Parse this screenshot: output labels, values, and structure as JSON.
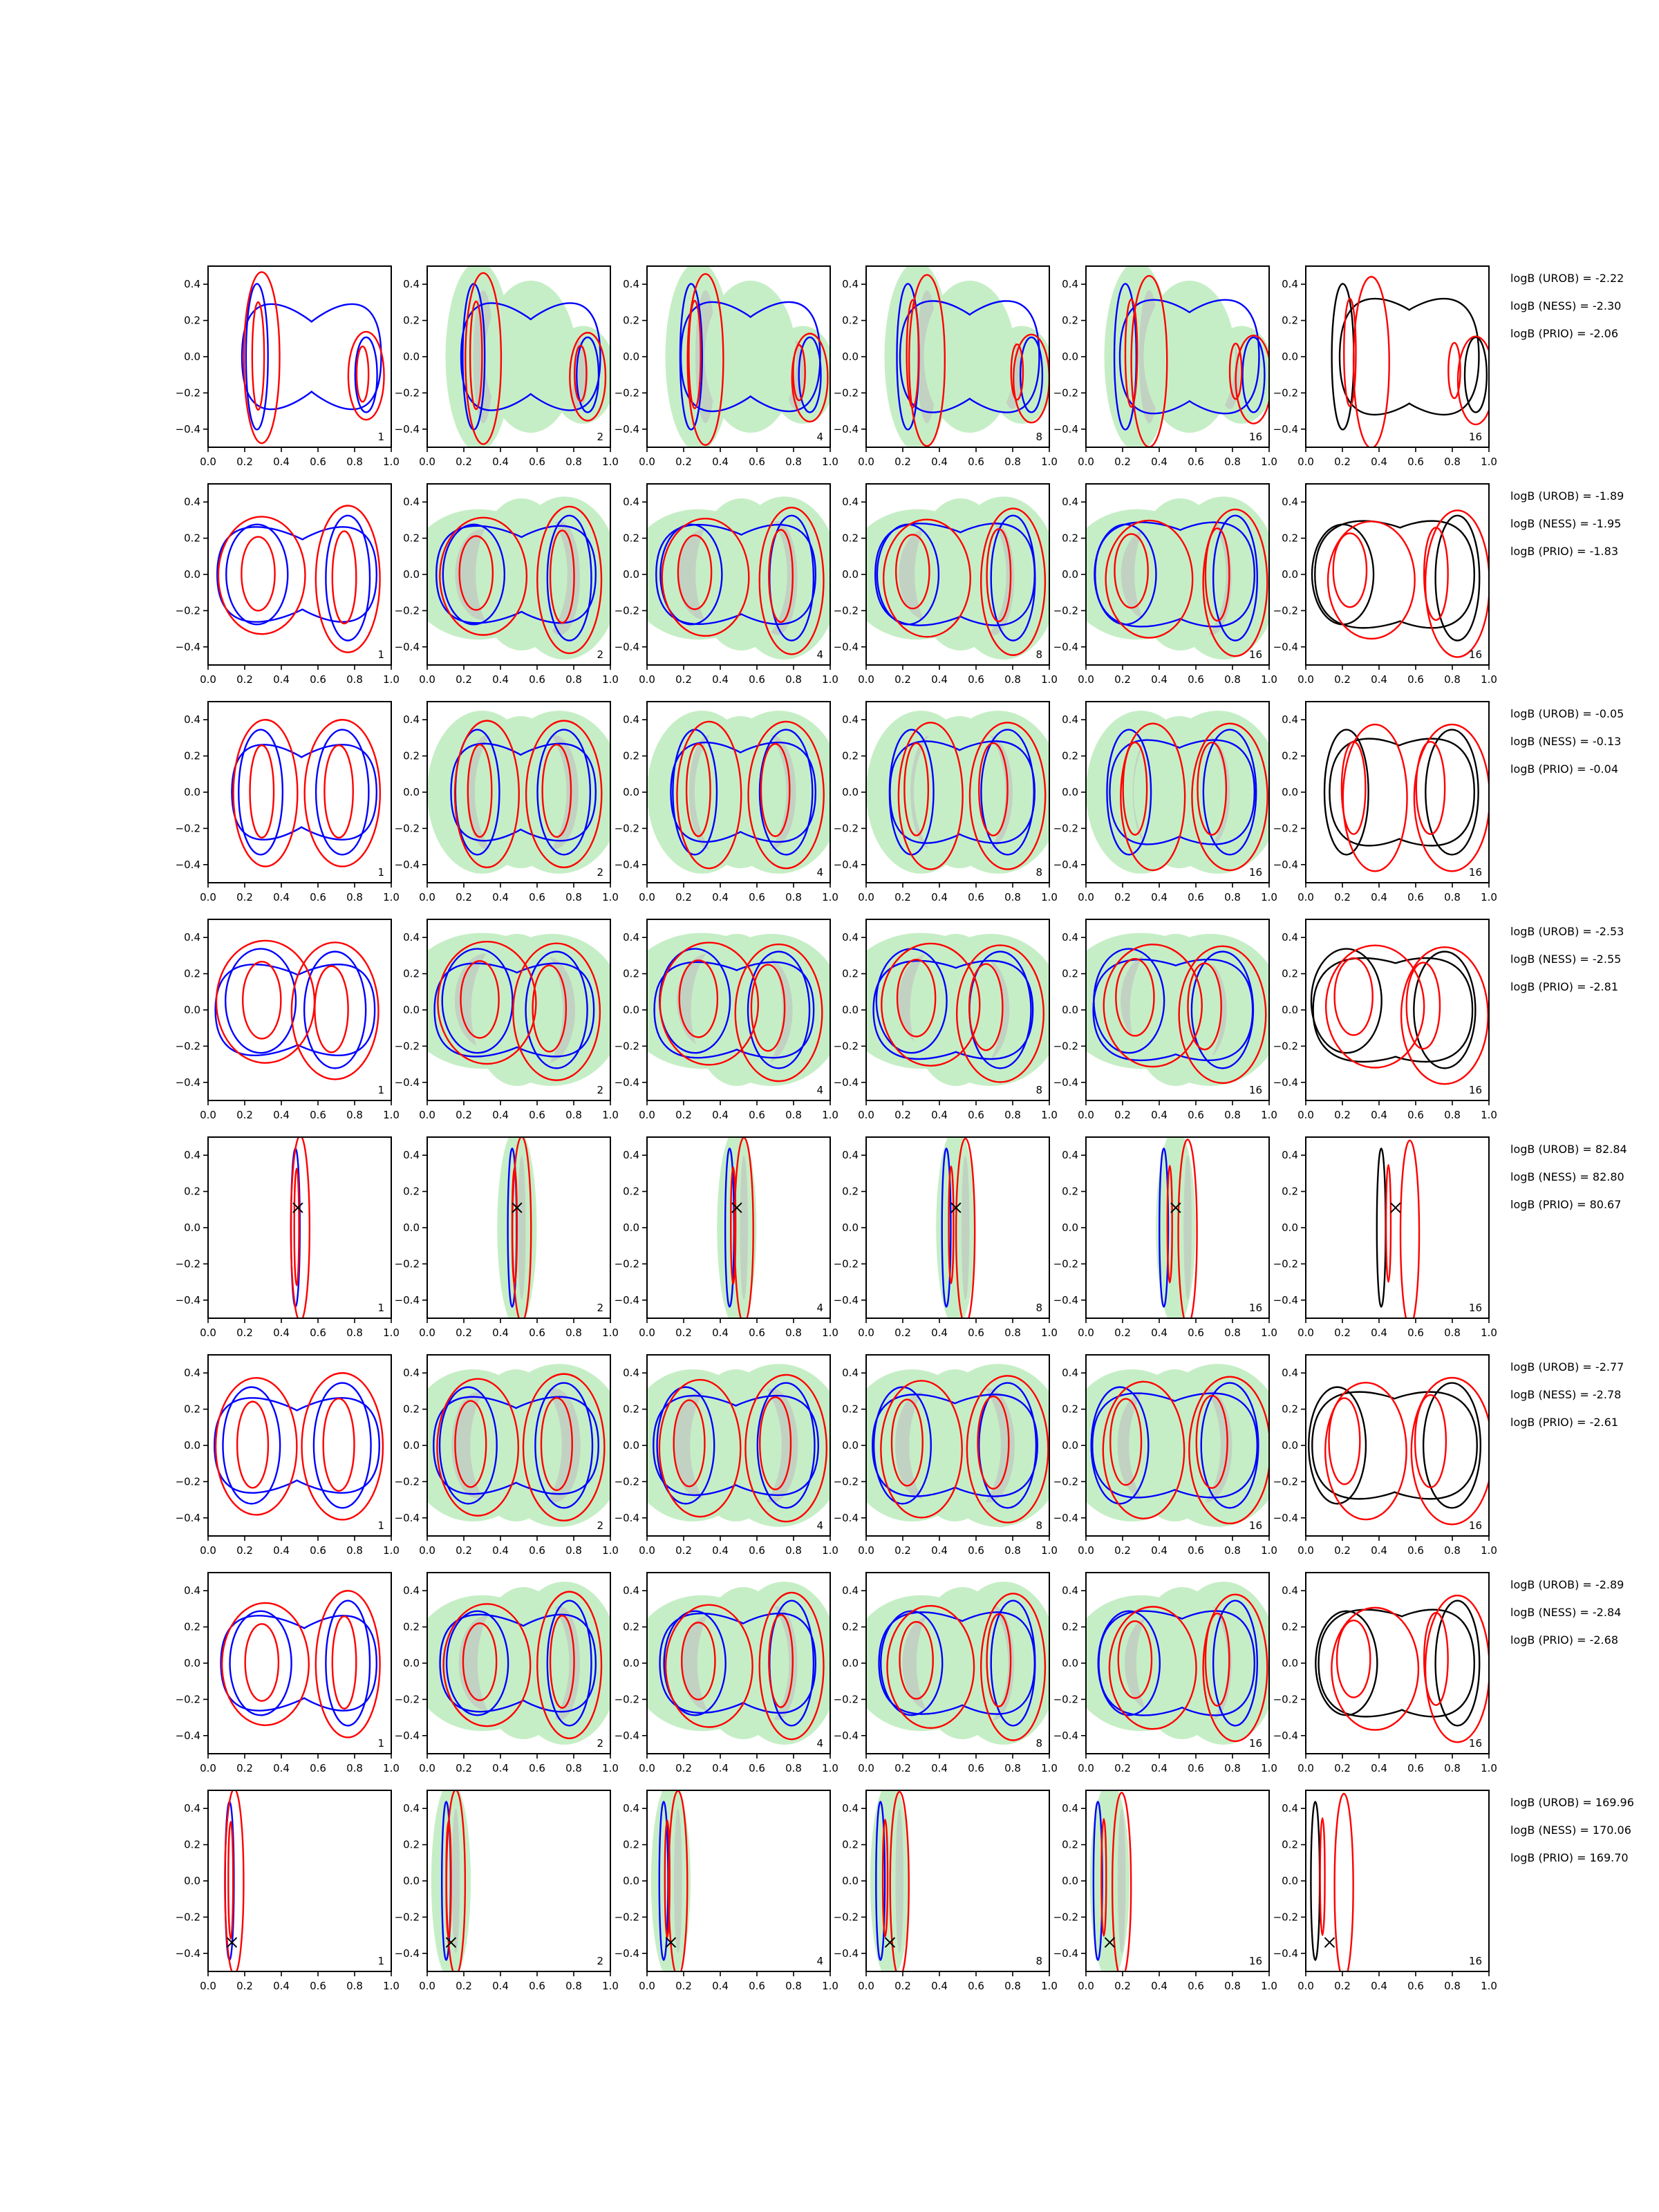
{
  "chart_data": {
    "type": "contour",
    "xlim": [
      0.0,
      1.0
    ],
    "ylim": [
      -0.5,
      0.5
    ],
    "x_ticks": [
      0.0,
      0.2,
      0.4,
      0.6,
      0.8,
      1.0
    ],
    "x_tick_labels": [
      "0.0",
      "0.2",
      "0.4",
      "0.6",
      "0.8",
      "1.0"
    ],
    "y_ticks": [
      -0.4,
      -0.2,
      0.0,
      0.2,
      0.4
    ],
    "y_tick_labels": [
      "−0.4",
      "−0.2",
      "0.0",
      "0.2",
      "0.4"
    ],
    "column_labels": [
      "1",
      "2",
      "4",
      "8",
      "16",
      "16"
    ],
    "colors": {
      "contour_a": "#0000ff",
      "contour_b": "#ff0000",
      "contour_c": "#000000",
      "fill_light": "#c6eec6",
      "fill_dark": "#c0c8c0"
    },
    "rows": [
      {
        "logB": [
          "logB (UROB) = -2.22",
          "logB (NESS) = -2.30",
          "logB (PRIO) = -2.06"
        ],
        "modes": [
          {
            "x": 0.28,
            "y": 0.0,
            "sx": 0.05,
            "sy": 0.35
          },
          {
            "x": 0.85,
            "y": -0.1,
            "sx": 0.05,
            "sy": 0.18
          }
        ],
        "marker": null
      },
      {
        "logB": [
          "logB (UROB) = -1.89",
          "logB (NESS) = -1.95",
          "logB (PRIO) = -1.83"
        ],
        "modes": [
          {
            "x": 0.28,
            "y": 0.0,
            "sx": 0.14,
            "sy": 0.24
          },
          {
            "x": 0.75,
            "y": -0.02,
            "sx": 0.1,
            "sy": 0.3
          }
        ],
        "marker": null
      },
      {
        "logB": [
          "logB (UROB) = -0.05",
          "logB (NESS) = -0.13",
          "logB (PRIO) = -0.04"
        ],
        "modes": [
          {
            "x": 0.3,
            "y": 0.0,
            "sx": 0.1,
            "sy": 0.3
          },
          {
            "x": 0.72,
            "y": 0.0,
            "sx": 0.12,
            "sy": 0.3
          }
        ],
        "marker": null
      },
      {
        "logB": [
          "logB (UROB) = -2.53",
          "logB (NESS) = -2.55",
          "logB (PRIO) = -2.81"
        ],
        "modes": [
          {
            "x": 0.3,
            "y": 0.05,
            "sx": 0.16,
            "sy": 0.25
          },
          {
            "x": 0.68,
            "y": 0.0,
            "sx": 0.14,
            "sy": 0.28
          }
        ],
        "marker": null
      },
      {
        "logB": [
          "logB (UROB) = 82.84",
          "logB (NESS) = 82.80",
          "logB (PRIO) = 80.67"
        ],
        "modes": [
          {
            "x": 0.49,
            "y": 0.0,
            "sx": 0.02,
            "sy": 0.38
          }
        ],
        "marker": {
          "x": 0.49,
          "y": 0.11
        }
      },
      {
        "logB": [
          "logB (UROB) = -2.77",
          "logB (NESS) = -2.78",
          "logB (PRIO) = -2.61"
        ],
        "modes": [
          {
            "x": 0.25,
            "y": 0.0,
            "sx": 0.13,
            "sy": 0.28
          },
          {
            "x": 0.72,
            "y": 0.0,
            "sx": 0.13,
            "sy": 0.3
          }
        ],
        "marker": null
      },
      {
        "logB": [
          "logB (UROB) = -2.89",
          "logB (NESS) = -2.84",
          "logB (PRIO) = -2.68"
        ],
        "modes": [
          {
            "x": 0.3,
            "y": 0.0,
            "sx": 0.14,
            "sy": 0.25
          },
          {
            "x": 0.75,
            "y": 0.0,
            "sx": 0.1,
            "sy": 0.3
          }
        ],
        "marker": null
      },
      {
        "logB": [
          "logB (UROB) = 169.96",
          "logB (NESS) = 170.06",
          "logB (PRIO) = 169.70"
        ],
        "modes": [
          {
            "x": 0.13,
            "y": 0.0,
            "sx": 0.02,
            "sy": 0.38
          }
        ],
        "marker": {
          "x": 0.13,
          "y": -0.34
        }
      }
    ]
  }
}
